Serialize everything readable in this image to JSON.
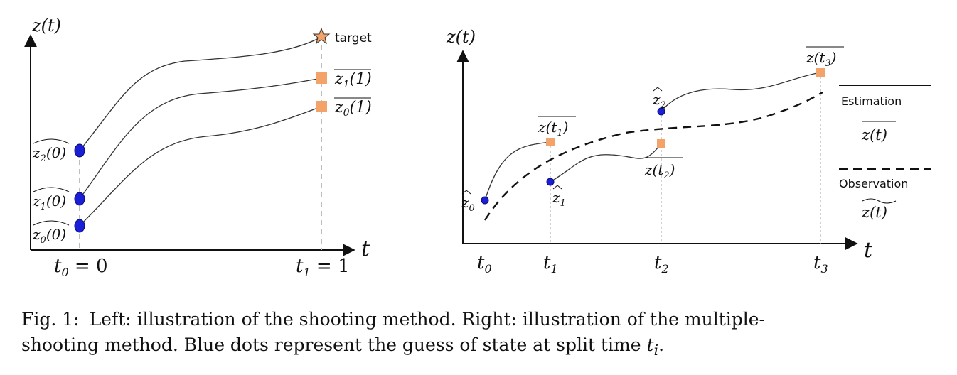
{
  "left_panel": {
    "y_axis_label": "z(t)",
    "x_axis_label": "t",
    "target_label": "target",
    "end_labels": {
      "z1": "z",
      "z1_sub": "1",
      "z1_arg": "(1)",
      "z0": "z",
      "z0_sub": "0",
      "z0_arg": "(1)"
    },
    "start_labels": [
      {
        "base": "z",
        "sub": "2",
        "arg": "(0)"
      },
      {
        "base": "z",
        "sub": "1",
        "arg": "(0)"
      },
      {
        "base": "z",
        "sub": "0",
        "arg": "(0)"
      }
    ],
    "tick_t0": {
      "base": "t",
      "sub": "0",
      "rest": " = 0"
    },
    "tick_t1": {
      "base": "t",
      "sub": "1",
      "rest": " = 1"
    }
  },
  "right_panel": {
    "y_axis_label": "z(t)",
    "x_axis_label": "t",
    "ticks": [
      {
        "base": "t",
        "sub": "0"
      },
      {
        "base": "t",
        "sub": "1"
      },
      {
        "base": "t",
        "sub": "2"
      },
      {
        "base": "t",
        "sub": "3"
      }
    ],
    "guess_labels": [
      {
        "base": "z",
        "sub": "0"
      },
      {
        "base": "z",
        "sub": "1"
      },
      {
        "base": "z",
        "sub": "2"
      }
    ],
    "obs_point_labels": [
      {
        "base": "z(t",
        "sub": "1",
        "close": ")"
      },
      {
        "base": "z(t",
        "sub": "2",
        "close": ")"
      },
      {
        "base": "z(t",
        "sub": "3",
        "close": ")"
      }
    ],
    "legend": {
      "estimation_label": "Estimation",
      "estimation_symbol": "z(t)",
      "observation_label": "Observation",
      "observation_symbol": "z(t)"
    }
  },
  "colors": {
    "guess_dot": "#1a1fd6",
    "end_square": "#f3a36a"
  },
  "caption": {
    "fig_number": "Fig. 1:",
    "line1": "Left: illustration of the shooting method. Right: illustration of the multiple-",
    "line2_prefix": "shooting method. Blue dots represent the guess of state at split time ",
    "line2_var": "t",
    "line2_sub": "i",
    "line2_suffix": "."
  }
}
